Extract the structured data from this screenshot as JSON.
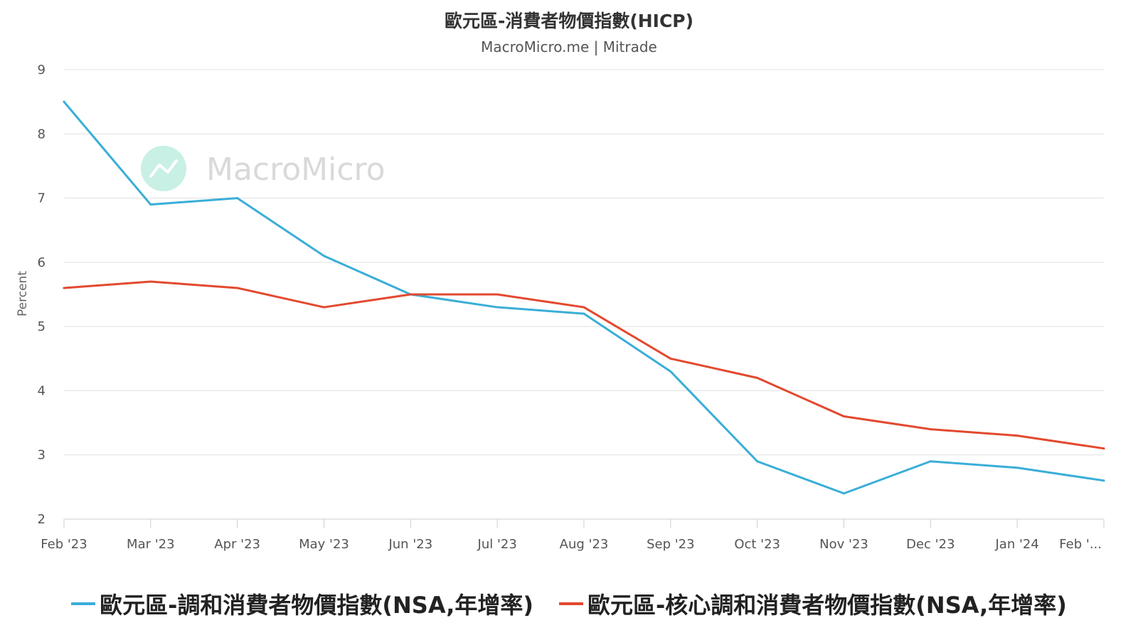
{
  "header": {
    "title": "歐元區-消費者物價指數(HICP)",
    "subtitle": "MacroMicro.me | Mitrade"
  },
  "watermark": {
    "text": "MacroMicro",
    "icon": "macromicro-logo-icon",
    "icon_color": "#c8f0e4"
  },
  "colors": {
    "series_hicp": "#3aaed8",
    "series_core": "#e3492f",
    "grid": "#e0e0e0",
    "axis": "#cccccc"
  },
  "chart_data": {
    "type": "line",
    "title": "歐元區-消費者物價指數(HICP)",
    "subtitle": "MacroMicro.me | Mitrade",
    "xlabel": "",
    "ylabel": "Percent",
    "ylim": [
      2,
      9
    ],
    "yticks": [
      2,
      3,
      4,
      5,
      6,
      7,
      8,
      9
    ],
    "grid": true,
    "legend_position": "bottom",
    "categories": [
      "Feb '23",
      "Mar '23",
      "Apr '23",
      "May '23",
      "Jun '23",
      "Jul '23",
      "Aug '23",
      "Sep '23",
      "Oct '23",
      "Nov '23",
      "Dec '23",
      "Jan '24",
      "Feb '..."
    ],
    "series": [
      {
        "name": "歐元區-調和消費者物價指數(NSA,年增率)",
        "color": "#3aaed8",
        "values": [
          8.5,
          6.9,
          7.0,
          6.1,
          5.5,
          5.3,
          5.2,
          4.3,
          2.9,
          2.4,
          2.9,
          2.8,
          2.6
        ]
      },
      {
        "name": "歐元區-核心調和消費者物價指數(NSA,年增率)",
        "color": "#e3492f",
        "values": [
          5.6,
          5.7,
          5.6,
          5.3,
          5.5,
          5.5,
          5.3,
          4.5,
          4.2,
          3.6,
          3.4,
          3.3,
          3.1
        ]
      }
    ]
  }
}
